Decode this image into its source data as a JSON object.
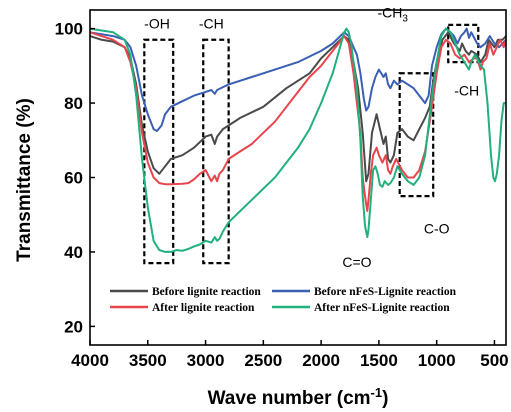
{
  "chart_data": {
    "type": "line",
    "title": "",
    "xlabel": "Wave number (cm",
    "xlabel_sup": "-1",
    "xlabel_close": ")",
    "ylabel": "Transmittance (%)",
    "xlim": [
      4000,
      400
    ],
    "ylim": [
      15,
      105
    ],
    "x_ticks": [
      4000,
      3500,
      3000,
      2500,
      2000,
      1500,
      1000,
      500
    ],
    "y_ticks": [
      20,
      40,
      60,
      80,
      100
    ],
    "grid": false,
    "legend_position": "bottom",
    "annotations": [
      {
        "text": "-OH",
        "x": 3420,
        "y": 100
      },
      {
        "text": "-CH",
        "x": 2950,
        "y": 100
      },
      {
        "text": "-CH",
        "sub": "3",
        "x": 1380,
        "y": 103
      },
      {
        "text": "-CH",
        "x": 740,
        "y": 82
      },
      {
        "text": "C-O",
        "x": 1000,
        "y": 45
      },
      {
        "text": "C=O",
        "x": 1690,
        "y": 36
      }
    ],
    "boxes": [
      {
        "x": [
          3530,
          3280
        ],
        "y": [
          37,
          97
        ]
      },
      {
        "x": [
          3020,
          2800
        ],
        "y": [
          37,
          97
        ]
      },
      {
        "x": [
          1320,
          1030
        ],
        "y": [
          55,
          88
        ]
      },
      {
        "x": [
          900,
          640
        ],
        "y": [
          91,
          101
        ]
      }
    ],
    "series": [
      {
        "name": "Before lignite reaction",
        "color": "#4a4a4a",
        "points": [
          [
            4000,
            98
          ],
          [
            3900,
            97
          ],
          [
            3800,
            96.5
          ],
          [
            3700,
            95
          ],
          [
            3650,
            92
          ],
          [
            3600,
            85
          ],
          [
            3550,
            74
          ],
          [
            3500,
            67
          ],
          [
            3450,
            62.5
          ],
          [
            3400,
            61
          ],
          [
            3350,
            63
          ],
          [
            3300,
            65
          ],
          [
            3200,
            66
          ],
          [
            3100,
            68
          ],
          [
            3000,
            71
          ],
          [
            2950,
            71.5
          ],
          [
            2920,
            69
          ],
          [
            2900,
            71
          ],
          [
            2850,
            73
          ],
          [
            2800,
            74
          ],
          [
            2700,
            76
          ],
          [
            2500,
            79
          ],
          [
            2300,
            84
          ],
          [
            2100,
            88
          ],
          [
            2000,
            92
          ],
          [
            1900,
            95
          ],
          [
            1800,
            98
          ],
          [
            1760,
            97
          ],
          [
            1720,
            91
          ],
          [
            1680,
            84
          ],
          [
            1640,
            72
          ],
          [
            1610,
            59
          ],
          [
            1590,
            61
          ],
          [
            1560,
            72
          ],
          [
            1520,
            77
          ],
          [
            1490,
            73
          ],
          [
            1460,
            69
          ],
          [
            1440,
            71
          ],
          [
            1420,
            65
          ],
          [
            1400,
            64
          ],
          [
            1370,
            66
          ],
          [
            1340,
            72
          ],
          [
            1300,
            73
          ],
          [
            1250,
            71
          ],
          [
            1200,
            70
          ],
          [
            1150,
            73
          ],
          [
            1100,
            76
          ],
          [
            1060,
            79
          ],
          [
            1030,
            86
          ],
          [
            1000,
            91
          ],
          [
            950,
            97
          ],
          [
            900,
            99
          ],
          [
            850,
            96
          ],
          [
            800,
            94
          ],
          [
            780,
            96
          ],
          [
            750,
            94
          ],
          [
            720,
            93
          ],
          [
            700,
            94
          ],
          [
            650,
            93
          ],
          [
            620,
            91
          ],
          [
            580,
            93
          ],
          [
            550,
            97
          ],
          [
            500,
            95
          ],
          [
            470,
            97
          ],
          [
            430,
            97
          ],
          [
            400,
            98
          ]
        ]
      },
      {
        "name": "Before nFeS-Lignite reaction",
        "color": "#3b5fb5",
        "points": [
          [
            4000,
            99
          ],
          [
            3900,
            98.5
          ],
          [
            3800,
            98
          ],
          [
            3700,
            97
          ],
          [
            3650,
            95
          ],
          [
            3600,
            90
          ],
          [
            3550,
            82
          ],
          [
            3500,
            77
          ],
          [
            3450,
            73
          ],
          [
            3420,
            72.5
          ],
          [
            3380,
            74
          ],
          [
            3350,
            77
          ],
          [
            3300,
            79
          ],
          [
            3200,
            80.5
          ],
          [
            3100,
            82
          ],
          [
            3000,
            83
          ],
          [
            2950,
            83.5
          ],
          [
            2920,
            82.5
          ],
          [
            2900,
            83.5
          ],
          [
            2800,
            85
          ],
          [
            2600,
            87
          ],
          [
            2400,
            89
          ],
          [
            2200,
            91
          ],
          [
            2000,
            94
          ],
          [
            1900,
            96
          ],
          [
            1800,
            99
          ],
          [
            1760,
            98
          ],
          [
            1720,
            95
          ],
          [
            1690,
            93
          ],
          [
            1660,
            88
          ],
          [
            1630,
            81
          ],
          [
            1610,
            78
          ],
          [
            1590,
            79
          ],
          [
            1560,
            84
          ],
          [
            1530,
            87
          ],
          [
            1500,
            89
          ],
          [
            1480,
            88
          ],
          [
            1460,
            87
          ],
          [
            1440,
            88
          ],
          [
            1420,
            85
          ],
          [
            1400,
            84
          ],
          [
            1370,
            86
          ],
          [
            1340,
            85
          ],
          [
            1300,
            86
          ],
          [
            1250,
            85
          ],
          [
            1200,
            84
          ],
          [
            1150,
            82
          ],
          [
            1100,
            80
          ],
          [
            1070,
            82
          ],
          [
            1040,
            90
          ],
          [
            1000,
            95
          ],
          [
            960,
            98.5
          ],
          [
            920,
            100
          ],
          [
            880,
            99
          ],
          [
            850,
            98
          ],
          [
            820,
            96
          ],
          [
            790,
            98
          ],
          [
            760,
            99
          ],
          [
            740,
            100
          ],
          [
            720,
            97.5
          ],
          [
            700,
            99
          ],
          [
            650,
            96
          ],
          [
            620,
            95
          ],
          [
            580,
            96
          ],
          [
            540,
            98
          ],
          [
            500,
            96
          ],
          [
            460,
            95
          ],
          [
            430,
            96
          ],
          [
            400,
            97
          ]
        ]
      },
      {
        "name": "After lignite reaction",
        "color": "#e8454c",
        "points": [
          [
            4000,
            99
          ],
          [
            3900,
            98
          ],
          [
            3800,
            97
          ],
          [
            3700,
            95
          ],
          [
            3650,
            91
          ],
          [
            3600,
            84
          ],
          [
            3550,
            72
          ],
          [
            3500,
            64
          ],
          [
            3450,
            60
          ],
          [
            3400,
            58.5
          ],
          [
            3350,
            58.2
          ],
          [
            3300,
            58.2
          ],
          [
            3200,
            58.3
          ],
          [
            3150,
            58.5
          ],
          [
            3100,
            59.5
          ],
          [
            3050,
            61
          ],
          [
            3000,
            62
          ],
          [
            2950,
            59
          ],
          [
            2920,
            60.5
          ],
          [
            2900,
            59
          ],
          [
            2880,
            61
          ],
          [
            2850,
            62
          ],
          [
            2800,
            65
          ],
          [
            2700,
            67
          ],
          [
            2600,
            69
          ],
          [
            2500,
            72
          ],
          [
            2400,
            75
          ],
          [
            2300,
            79
          ],
          [
            2200,
            83
          ],
          [
            2100,
            87
          ],
          [
            2000,
            90
          ],
          [
            1900,
            94
          ],
          [
            1800,
            98
          ],
          [
            1760,
            96
          ],
          [
            1720,
            88
          ],
          [
            1690,
            80
          ],
          [
            1660,
            72
          ],
          [
            1640,
            60
          ],
          [
            1620,
            55
          ],
          [
            1600,
            51
          ],
          [
            1590,
            54
          ],
          [
            1570,
            61
          ],
          [
            1550,
            66
          ],
          [
            1520,
            68
          ],
          [
            1500,
            66
          ],
          [
            1470,
            64
          ],
          [
            1440,
            66
          ],
          [
            1420,
            62
          ],
          [
            1400,
            61
          ],
          [
            1380,
            63
          ],
          [
            1350,
            65
          ],
          [
            1300,
            62
          ],
          [
            1250,
            60
          ],
          [
            1200,
            60
          ],
          [
            1150,
            62
          ],
          [
            1100,
            67
          ],
          [
            1050,
            77
          ],
          [
            1000,
            88
          ],
          [
            960,
            95
          ],
          [
            920,
            97
          ],
          [
            880,
            96
          ],
          [
            840,
            93
          ],
          [
            800,
            92
          ],
          [
            760,
            93
          ],
          [
            720,
            91
          ],
          [
            680,
            92
          ],
          [
            650,
            92
          ],
          [
            620,
            89
          ],
          [
            600,
            91
          ],
          [
            570,
            92
          ],
          [
            540,
            96
          ],
          [
            510,
            93
          ],
          [
            480,
            95
          ],
          [
            450,
            97
          ],
          [
            420,
            95
          ],
          [
            400,
            97
          ]
        ]
      },
      {
        "name": "After nFeS-Lignite reaction",
        "color": "#22b07d",
        "points": [
          [
            4000,
            100
          ],
          [
            3900,
            99.5
          ],
          [
            3800,
            99
          ],
          [
            3700,
            97
          ],
          [
            3650,
            93
          ],
          [
            3600,
            82
          ],
          [
            3550,
            65
          ],
          [
            3500,
            52
          ],
          [
            3450,
            43
          ],
          [
            3400,
            40.5
          ],
          [
            3350,
            40
          ],
          [
            3300,
            40
          ],
          [
            3250,
            40.5
          ],
          [
            3200,
            40.3
          ],
          [
            3150,
            40.8
          ],
          [
            3100,
            41.5
          ],
          [
            3050,
            42
          ],
          [
            3000,
            43
          ],
          [
            2950,
            42.5
          ],
          [
            2920,
            44
          ],
          [
            2900,
            43
          ],
          [
            2880,
            43.5
          ],
          [
            2850,
            45.5
          ],
          [
            2800,
            48
          ],
          [
            2700,
            51
          ],
          [
            2600,
            54
          ],
          [
            2500,
            57
          ],
          [
            2400,
            60
          ],
          [
            2300,
            64
          ],
          [
            2200,
            68
          ],
          [
            2100,
            73
          ],
          [
            2000,
            80
          ],
          [
            1900,
            88
          ],
          [
            1800,
            99
          ],
          [
            1780,
            100
          ],
          [
            1760,
            99
          ],
          [
            1740,
            96
          ],
          [
            1720,
            91
          ],
          [
            1690,
            84
          ],
          [
            1660,
            70
          ],
          [
            1640,
            55
          ],
          [
            1620,
            47
          ],
          [
            1600,
            44
          ],
          [
            1590,
            46
          ],
          [
            1570,
            54
          ],
          [
            1550,
            62
          ],
          [
            1530,
            63
          ],
          [
            1510,
            61
          ],
          [
            1490,
            58
          ],
          [
            1470,
            57.5
          ],
          [
            1450,
            59
          ],
          [
            1420,
            58
          ],
          [
            1400,
            58.5
          ],
          [
            1370,
            60
          ],
          [
            1340,
            63
          ],
          [
            1300,
            61
          ],
          [
            1250,
            59
          ],
          [
            1200,
            58
          ],
          [
            1150,
            60
          ],
          [
            1100,
            66
          ],
          [
            1070,
            74
          ],
          [
            1040,
            82
          ],
          [
            1000,
            91
          ],
          [
            960,
            98
          ],
          [
            920,
            100
          ],
          [
            880,
            99
          ],
          [
            840,
            96
          ],
          [
            800,
            93
          ],
          [
            760,
            91
          ],
          [
            720,
            89
          ],
          [
            700,
            91
          ],
          [
            670,
            93
          ],
          [
            650,
            92
          ],
          [
            620,
            90
          ],
          [
            590,
            89
          ],
          [
            560,
            80
          ],
          [
            530,
            66
          ],
          [
            510,
            60
          ],
          [
            495,
            59
          ],
          [
            480,
            61
          ],
          [
            460,
            66
          ],
          [
            440,
            75
          ],
          [
            420,
            80
          ],
          [
            400,
            80
          ]
        ]
      }
    ]
  }
}
